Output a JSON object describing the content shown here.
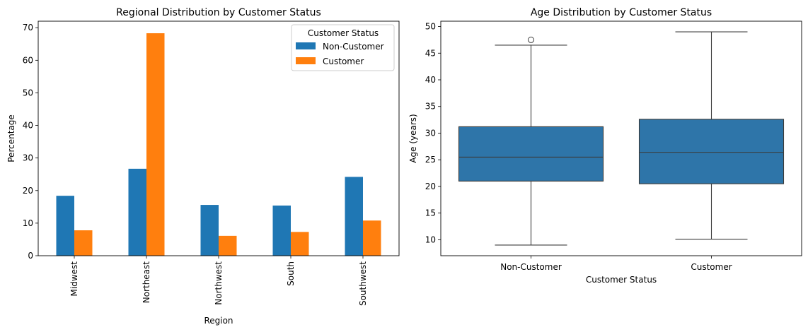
{
  "colors": {
    "series_1": "#1f77b4",
    "series_2": "#ff7f0e",
    "box_fill": "#2e75a9",
    "box_edge": "#3b3b3b"
  },
  "chart_data": [
    {
      "type": "bar",
      "title": "Regional Distribution by Customer Status",
      "xlabel": "Region",
      "ylabel": "Percentage",
      "ylim": [
        0,
        72
      ],
      "yticks": [
        "0",
        "10",
        "20",
        "30",
        "40",
        "50",
        "60",
        "70"
      ],
      "categories": [
        "Midwest",
        "Northeast",
        "Northwest",
        "South",
        "Southwest"
      ],
      "series": [
        {
          "name": "Non-Customer",
          "values": [
            18.4,
            26.7,
            15.6,
            15.4,
            24.2
          ]
        },
        {
          "name": "Customer",
          "values": [
            7.8,
            68.3,
            6.1,
            7.3,
            10.8
          ]
        }
      ],
      "legend": {
        "title": "Customer Status",
        "placement": "top-right"
      },
      "grid": false
    },
    {
      "type": "box",
      "title": "Age Distribution by Customer Status",
      "xlabel": "Customer Status",
      "ylabel": "Age (years)",
      "ylim": [
        7.0,
        51.0
      ],
      "yticks": [
        "10",
        "15",
        "20",
        "25",
        "30",
        "35",
        "40",
        "45",
        "50"
      ],
      "categories": [
        "Non-Customer",
        "Customer"
      ],
      "boxes": [
        {
          "category": "Non-Customer",
          "whisker_low": 9.0,
          "q1": 21.0,
          "median": 25.5,
          "q3": 31.2,
          "whisker_high": 46.5,
          "outliers": [
            47.5
          ]
        },
        {
          "category": "Customer",
          "whisker_low": 10.1,
          "q1": 20.5,
          "median": 26.4,
          "q3": 32.6,
          "whisker_high": 49.0,
          "outliers": []
        }
      ],
      "grid": false
    }
  ]
}
